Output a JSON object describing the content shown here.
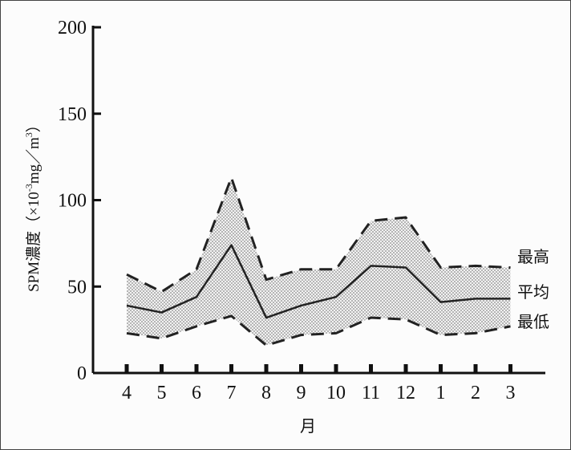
{
  "chart_data": {
    "type": "area",
    "categories": [
      "4",
      "5",
      "6",
      "7",
      "8",
      "9",
      "10",
      "11",
      "12",
      "1",
      "2",
      "3"
    ],
    "series": [
      {
        "name": "最高",
        "style": "dashed",
        "values": [
          57,
          47,
          60,
          113,
          54,
          60,
          60,
          88,
          90,
          61,
          62,
          61
        ]
      },
      {
        "name": "平均",
        "style": "solid",
        "values": [
          39,
          35,
          44,
          74,
          32,
          39,
          44,
          62,
          61,
          41,
          43,
          43
        ]
      },
      {
        "name": "最低",
        "style": "dashed",
        "values": [
          23,
          20,
          27,
          33,
          16,
          22,
          23,
          32,
          31,
          22,
          23,
          27
        ]
      }
    ],
    "band": {
      "upper": "最高",
      "lower": "最低",
      "fill": "dotted-gray"
    },
    "xlabel": "月",
    "ylabel": {
      "main": "SPM濃度（×10",
      "exp": "-3",
      "unit": "mg／m",
      "unit_exp": "3",
      "close": "）"
    },
    "ylim": [
      0,
      200
    ],
    "yticks": [
      0,
      50,
      100,
      150,
      200
    ],
    "grid": false,
    "legend_position": "right-inline",
    "colors": {
      "line": "#222222",
      "band_dot": "#8a8a8a"
    }
  }
}
